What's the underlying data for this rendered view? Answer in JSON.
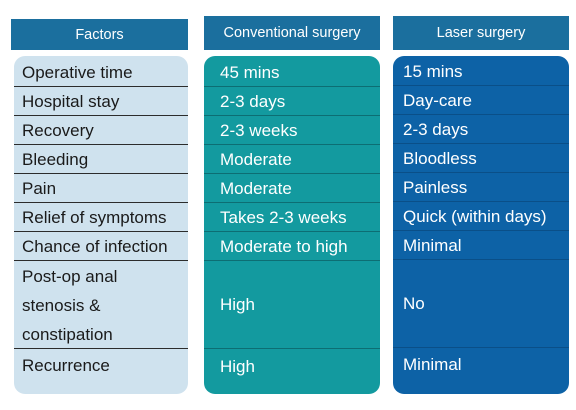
{
  "headers": {
    "factors": "Factors",
    "conventional": "Conventional surgery",
    "laser": "Laser surgery"
  },
  "factors": [
    "Operative time",
    "Hospital stay",
    "Recovery",
    "Bleeding",
    "Pain",
    "Relief of symptoms",
    "Chance of infection",
    [
      "Post-op anal",
      "stenosis &",
      "constipation"
    ],
    "Recurrence"
  ],
  "conventional": [
    "45 mins",
    "2-3 days",
    "2-3 weeks",
    "Moderate",
    "Moderate",
    "Takes 2-3 weeks",
    "Moderate to high",
    "High",
    "High"
  ],
  "laser": [
    "15 mins",
    "Day-care",
    "2-3 days",
    "Bloodless",
    "Painless",
    "Quick (within days)",
    "Minimal",
    "No",
    "Minimal"
  ],
  "colors": {
    "header": "#1b6f9e",
    "factors_bg": "#cfe2ee",
    "conventional_bg": "#139a9f",
    "laser_bg": "#0d62a6"
  }
}
